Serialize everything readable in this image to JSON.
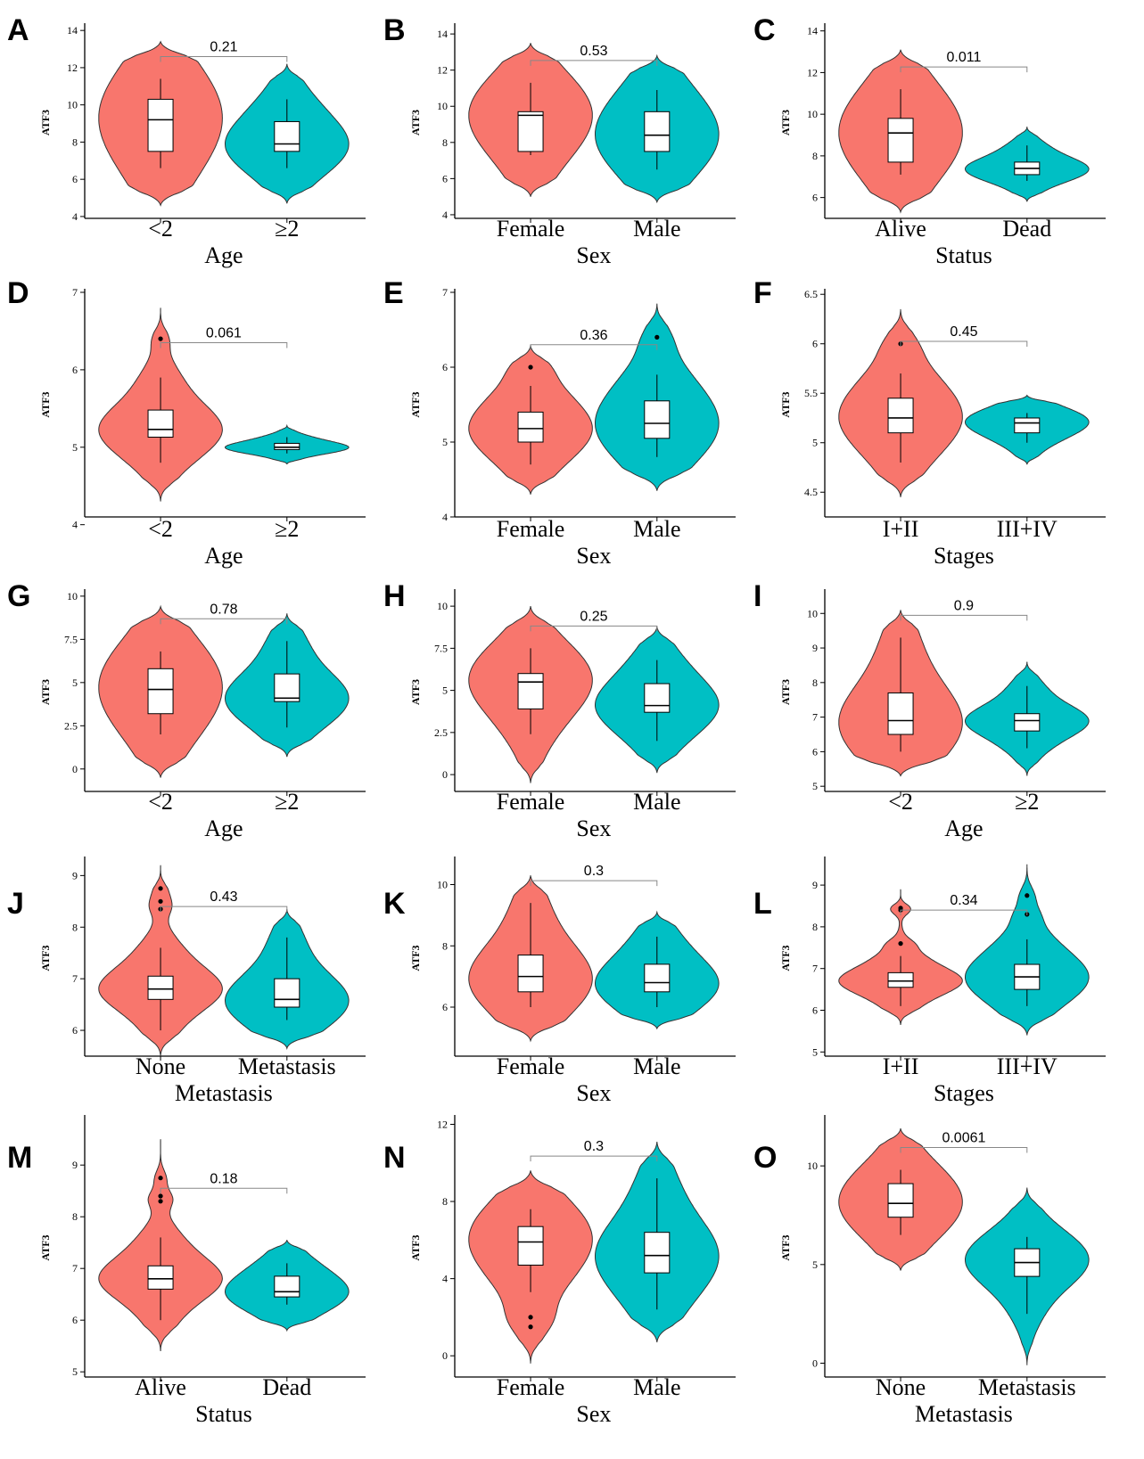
{
  "figure": {
    "ylabel": "ATF3"
  },
  "colors": {
    "group1": "#F8766D",
    "group2": "#00BFC4",
    "line": "#000000",
    "bracket": "#888888"
  },
  "chart_data": [
    {
      "panel": "A",
      "type": "violin",
      "xlabel": "Age",
      "categories": [
        "<2",
        "≥2"
      ],
      "yticks": [
        4,
        6,
        8,
        10,
        12,
        14
      ],
      "ylim": [
        3.9,
        14.2
      ],
      "p_value": "0.21",
      "violins": [
        {
          "min": 4.6,
          "max": 13.4,
          "median": 9.2,
          "q1": 7.5,
          "q3": 10.3,
          "wlo": 6.6,
          "whi": 11.4,
          "outliers": []
        },
        {
          "min": 4.7,
          "max": 12.2,
          "median": 7.9,
          "q1": 7.5,
          "q3": 9.1,
          "wlo": 6.6,
          "whi": 10.3,
          "outliers": []
        }
      ]
    },
    {
      "panel": "B",
      "type": "violin",
      "xlabel": "Sex",
      "categories": [
        "Female",
        "Male"
      ],
      "yticks": [
        4,
        6,
        8,
        10,
        12,
        14
      ],
      "ylim": [
        3.8,
        14.4
      ],
      "p_value": "0.53",
      "violins": [
        {
          "min": 5.0,
          "max": 13.5,
          "median": 9.5,
          "q1": 7.5,
          "q3": 9.7,
          "wlo": 7.3,
          "whi": 11.3,
          "outliers": []
        },
        {
          "min": 4.7,
          "max": 12.8,
          "median": 8.4,
          "q1": 7.5,
          "q3": 9.7,
          "wlo": 6.5,
          "whi": 10.9,
          "outliers": []
        }
      ]
    },
    {
      "panel": "C",
      "type": "violin",
      "xlabel": "Status",
      "categories": [
        "Alive",
        "Dead"
      ],
      "yticks": [
        6,
        8,
        10,
        12,
        14
      ],
      "ylim": [
        5.0,
        14.2
      ],
      "p_value": "0.011",
      "violins": [
        {
          "min": 5.3,
          "max": 13.1,
          "median": 9.1,
          "q1": 7.7,
          "q3": 9.8,
          "wlo": 7.1,
          "whi": 11.2,
          "outliers": []
        },
        {
          "min": 5.8,
          "max": 9.4,
          "median": 7.4,
          "q1": 7.1,
          "q3": 7.7,
          "wlo": 6.8,
          "whi": 8.5,
          "outliers": []
        }
      ]
    },
    {
      "panel": "D",
      "type": "violin",
      "xlabel": "Age",
      "categories": [
        "<2",
        "≥2"
      ],
      "yticks": [
        4,
        5,
        6,
        7
      ],
      "ylim": [
        4.1,
        7.0
      ],
      "p_value": "0.061",
      "violins": [
        {
          "min": 4.3,
          "max": 6.8,
          "median": 5.23,
          "q1": 5.13,
          "q3": 5.48,
          "wlo": 4.8,
          "whi": 5.9,
          "outliers": [
            6.4
          ]
        },
        {
          "min": 4.78,
          "max": 5.28,
          "median": 5.0,
          "q1": 4.97,
          "q3": 5.05,
          "wlo": 4.92,
          "whi": 5.13,
          "outliers": []
        }
      ]
    },
    {
      "panel": "E",
      "type": "violin",
      "xlabel": "Sex",
      "categories": [
        "Female",
        "Male"
      ],
      "yticks": [
        4,
        5,
        6,
        7
      ],
      "ylim": [
        4.0,
        7.0
      ],
      "p_value": "0.36",
      "violins": [
        {
          "min": 4.3,
          "max": 6.3,
          "median": 5.18,
          "q1": 5.0,
          "q3": 5.4,
          "wlo": 4.7,
          "whi": 5.75,
          "outliers": [
            6.0
          ]
        },
        {
          "min": 4.35,
          "max": 6.85,
          "median": 5.25,
          "q1": 5.05,
          "q3": 5.55,
          "wlo": 4.8,
          "whi": 5.9,
          "outliers": [
            6.4
          ]
        }
      ]
    },
    {
      "panel": "F",
      "type": "violin",
      "xlabel": "Stages",
      "categories": [
        "I+II",
        "III+IV"
      ],
      "yticks": [
        4.5,
        5.0,
        5.5,
        6.0,
        6.5
      ],
      "ylim": [
        4.25,
        6.52
      ],
      "p_value": "0.45",
      "violins": [
        {
          "min": 4.45,
          "max": 6.35,
          "median": 5.25,
          "q1": 5.1,
          "q3": 5.45,
          "wlo": 4.8,
          "whi": 5.7,
          "outliers": [
            6.0
          ]
        },
        {
          "min": 4.78,
          "max": 5.48,
          "median": 5.2,
          "q1": 5.1,
          "q3": 5.25,
          "wlo": 5.0,
          "whi": 5.3,
          "outliers": []
        }
      ]
    },
    {
      "panel": "G",
      "type": "violin",
      "xlabel": "Age",
      "categories": [
        "<2",
        "≥2"
      ],
      "yticks": [
        0.0,
        2.5,
        5.0,
        7.5,
        10.0
      ],
      "ylim": [
        -1.3,
        10.2
      ],
      "p_value": "0.78",
      "violins": [
        {
          "min": -0.5,
          "max": 9.4,
          "median": 4.6,
          "q1": 3.2,
          "q3": 5.8,
          "wlo": 2.0,
          "whi": 6.8,
          "outliers": []
        },
        {
          "min": 0.7,
          "max": 9.0,
          "median": 4.1,
          "q1": 3.9,
          "q3": 5.5,
          "wlo": 2.4,
          "whi": 7.4,
          "outliers": []
        }
      ]
    },
    {
      "panel": "H",
      "type": "violin",
      "xlabel": "Sex",
      "categories": [
        "Female",
        "Male"
      ],
      "yticks": [
        0.0,
        2.5,
        5.0,
        7.5,
        10.0
      ],
      "ylim": [
        -1.0,
        10.8
      ],
      "p_value": "0.25",
      "violins": [
        {
          "min": -0.5,
          "max": 10.0,
          "median": 5.5,
          "q1": 3.9,
          "q3": 6.0,
          "wlo": 2.4,
          "whi": 7.5,
          "outliers": []
        },
        {
          "min": 0.1,
          "max": 8.8,
          "median": 4.1,
          "q1": 3.7,
          "q3": 5.4,
          "wlo": 2.0,
          "whi": 6.8,
          "outliers": []
        }
      ]
    },
    {
      "panel": "I",
      "type": "violin",
      "xlabel": "Age",
      "categories": [
        "<2",
        "≥2"
      ],
      "yticks": [
        5,
        6,
        7,
        8,
        9,
        10
      ],
      "ylim": [
        4.85,
        10.6
      ],
      "p_value": "0.9",
      "violins": [
        {
          "min": 5.3,
          "max": 10.1,
          "median": 6.9,
          "q1": 6.5,
          "q3": 7.7,
          "wlo": 6.0,
          "whi": 9.3,
          "outliers": []
        },
        {
          "min": 5.3,
          "max": 8.6,
          "median": 6.9,
          "q1": 6.6,
          "q3": 7.1,
          "wlo": 6.1,
          "whi": 7.9,
          "outliers": []
        }
      ]
    },
    {
      "panel": "J",
      "type": "violin",
      "xlabel": "Metastasis",
      "categories": [
        "None",
        "Metastasis"
      ],
      "yticks": [
        6,
        7,
        8,
        9
      ],
      "ylim": [
        5.5,
        9.3
      ],
      "p_value": "0.43",
      "violins": [
        {
          "min": 5.5,
          "max": 9.2,
          "median": 6.8,
          "q1": 6.6,
          "q3": 7.05,
          "wlo": 6.0,
          "whi": 7.6,
          "outliers": [
            8.35,
            8.5,
            8.75
          ]
        },
        {
          "min": 5.65,
          "max": 8.35,
          "median": 6.6,
          "q1": 6.45,
          "q3": 7.0,
          "wlo": 6.2,
          "whi": 7.8,
          "outliers": []
        }
      ]
    },
    {
      "panel": "K",
      "type": "violin",
      "xlabel": "Sex",
      "categories": [
        "Female",
        "Male"
      ],
      "yticks": [
        6,
        8,
        10
      ],
      "ylim": [
        4.4,
        10.8
      ],
      "p_value": "0.3",
      "violins": [
        {
          "min": 4.9,
          "max": 10.3,
          "median": 7.0,
          "q1": 6.5,
          "q3": 7.7,
          "wlo": 6.0,
          "whi": 9.4,
          "outliers": []
        },
        {
          "min": 5.3,
          "max": 9.1,
          "median": 6.8,
          "q1": 6.5,
          "q3": 7.4,
          "wlo": 6.0,
          "whi": 8.3,
          "outliers": []
        }
      ]
    },
    {
      "panel": "L",
      "type": "violin",
      "xlabel": "Stages",
      "categories": [
        "I+II",
        "III+IV"
      ],
      "yticks": [
        5,
        6,
        7,
        8,
        9
      ],
      "ylim": [
        4.9,
        9.6
      ],
      "p_value": "0.34",
      "violins": [
        {
          "min": 5.65,
          "max": 8.9,
          "median": 6.7,
          "q1": 6.55,
          "q3": 6.9,
          "wlo": 6.1,
          "whi": 7.3,
          "outliers": [
            7.6,
            8.4,
            8.45
          ]
        },
        {
          "min": 5.4,
          "max": 9.5,
          "median": 6.8,
          "q1": 6.5,
          "q3": 7.1,
          "wlo": 6.1,
          "whi": 7.7,
          "outliers": [
            8.3,
            8.75
          ]
        }
      ]
    },
    {
      "panel": "M",
      "type": "violin",
      "xlabel": "Status",
      "categories": [
        "Alive",
        "Dead"
      ],
      "yticks": [
        5,
        6,
        7,
        8,
        9
      ],
      "ylim": [
        4.9,
        9.9
      ],
      "p_value": "0.18",
      "violins": [
        {
          "min": 5.4,
          "max": 9.5,
          "median": 6.8,
          "q1": 6.6,
          "q3": 7.05,
          "wlo": 6.0,
          "whi": 7.6,
          "outliers": [
            8.3,
            8.4,
            8.75
          ]
        },
        {
          "min": 5.8,
          "max": 7.55,
          "median": 6.55,
          "q1": 6.45,
          "q3": 6.85,
          "wlo": 6.3,
          "whi": 7.1,
          "outliers": []
        }
      ]
    },
    {
      "panel": "N",
      "type": "violin",
      "xlabel": "Sex",
      "categories": [
        "Female",
        "Male"
      ],
      "yticks": [
        0,
        4,
        8,
        12
      ],
      "ylim": [
        -1.1,
        12.3
      ],
      "p_value": "0.3",
      "violins": [
        {
          "min": -0.4,
          "max": 9.6,
          "median": 5.9,
          "q1": 4.7,
          "q3": 6.7,
          "wlo": 3.3,
          "whi": 7.6,
          "outliers": [
            1.5,
            2.0
          ]
        },
        {
          "min": 0.7,
          "max": 11.1,
          "median": 5.2,
          "q1": 4.3,
          "q3": 6.4,
          "wlo": 2.4,
          "whi": 9.2,
          "outliers": []
        }
      ]
    },
    {
      "panel": "O",
      "type": "violin",
      "xlabel": "Metastasis",
      "categories": [
        "None",
        "Metastasis"
      ],
      "yticks": [
        0,
        5,
        10
      ],
      "ylim": [
        -0.7,
        12.4
      ],
      "p_value": "0.0061",
      "violins": [
        {
          "min": 4.7,
          "max": 11.9,
          "median": 8.1,
          "q1": 7.4,
          "q3": 9.1,
          "wlo": 6.5,
          "whi": 9.8,
          "outliers": []
        },
        {
          "min": -0.1,
          "max": 8.9,
          "median": 5.1,
          "q1": 4.4,
          "q3": 5.8,
          "wlo": 2.5,
          "whi": 6.4,
          "outliers": []
        }
      ]
    }
  ]
}
